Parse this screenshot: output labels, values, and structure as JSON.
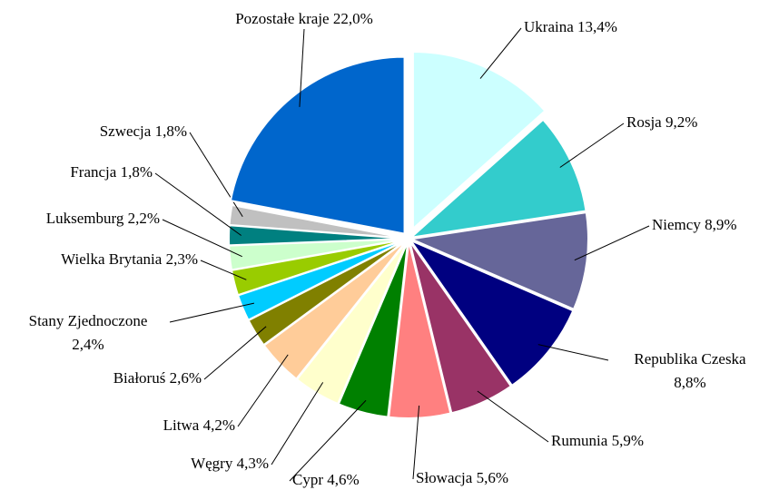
{
  "chart_data": {
    "type": "pie",
    "categories": [
      "Ukraina",
      "Rosja",
      "Niemcy",
      "Republika Czeska",
      "Rumunia",
      "Słowacja",
      "Cypr",
      "Węgry",
      "Litwa",
      "Białoruś",
      "Stany Zjednoczone",
      "Wielka Brytania",
      "Luksemburg",
      "Francja",
      "Szwecja",
      "Pozostałe kraje"
    ],
    "values": [
      13.4,
      9.2,
      8.9,
      8.8,
      5.9,
      5.6,
      4.6,
      4.3,
      4.2,
      2.6,
      2.4,
      2.3,
      2.2,
      1.8,
      1.8,
      22.0
    ],
    "value_labels": [
      "13,4%",
      "9,2%",
      "8,9%",
      "8,8%",
      "5,9%",
      "5,6%",
      "4,6%",
      "4,3%",
      "4,2%",
      "2,6%",
      "2,4%",
      "2,3%",
      "2,2%",
      "1,8%",
      "1,8%",
      "22,0%"
    ],
    "colors": [
      "#ccffff",
      "#33cccc",
      "#666699",
      "#000080",
      "#993366",
      "#ff8080",
      "#008000",
      "#ffffcc",
      "#ffcc99",
      "#808000",
      "#00ccff",
      "#99cc00",
      "#ccffcc",
      "#008080",
      "#c0c0c0",
      "#0066cc"
    ]
  }
}
